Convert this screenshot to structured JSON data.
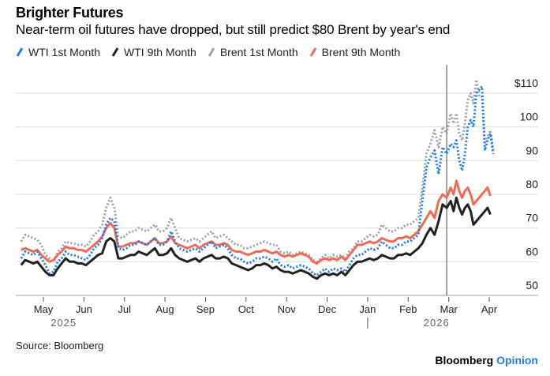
{
  "chart_data": {
    "type": "line",
    "title": "Brighter Futures",
    "subtitle": "Near-term oil futures have dropped, but still predict $80 Brent by year's end",
    "xlabel": "",
    "ylabel": "",
    "ylim": [
      50,
      114
    ],
    "yticks": [
      50,
      60,
      70,
      80,
      90,
      100,
      110
    ],
    "ytick_labels": [
      "50",
      "60",
      "70",
      "80",
      "90",
      "100",
      "$110"
    ],
    "xticks": [
      "May",
      "Jun",
      "Jul",
      "Aug",
      "Sep",
      "Oct",
      "Nov",
      "Dec",
      "Jan",
      "Feb",
      "Mar",
      "Apr"
    ],
    "year_labels": [
      {
        "label": "2025",
        "at_month": 4.5
      },
      {
        "label": "2026",
        "at_month": 13.7
      }
    ],
    "year_divider_month": 12,
    "reference_line_month": 13.95,
    "x_month_range": [
      3.4,
      15.6
    ],
    "grid": true,
    "legend_position": "top-left",
    "x": [
      3.45,
      3.55,
      3.65,
      3.75,
      3.85,
      3.95,
      4.05,
      4.15,
      4.25,
      4.35,
      4.45,
      4.55,
      4.65,
      4.75,
      4.85,
      4.95,
      5.05,
      5.15,
      5.25,
      5.35,
      5.45,
      5.55,
      5.65,
      5.75,
      5.85,
      5.95,
      6.05,
      6.15,
      6.25,
      6.35,
      6.45,
      6.55,
      6.65,
      6.75,
      6.85,
      6.95,
      7.05,
      7.15,
      7.25,
      7.35,
      7.45,
      7.55,
      7.65,
      7.75,
      7.85,
      7.95,
      8.05,
      8.15,
      8.25,
      8.35,
      8.45,
      8.55,
      8.65,
      8.75,
      8.85,
      8.95,
      9.05,
      9.15,
      9.25,
      9.35,
      9.45,
      9.55,
      9.65,
      9.75,
      9.85,
      9.95,
      10.05,
      10.15,
      10.25,
      10.35,
      10.45,
      10.55,
      10.65,
      10.75,
      10.85,
      10.95,
      11.05,
      11.15,
      11.25,
      11.35,
      11.45,
      11.55,
      11.65,
      11.75,
      11.85,
      11.95,
      12.05,
      12.15,
      12.25,
      12.35,
      12.45,
      12.55,
      12.65,
      12.75,
      12.85,
      12.95,
      13.05,
      13.15,
      13.25,
      13.35,
      13.45,
      13.55,
      13.65,
      13.75,
      13.85,
      13.95,
      14.05,
      14.12,
      14.19,
      14.26,
      14.33,
      14.4,
      14.47,
      14.54,
      14.61,
      14.68,
      14.75,
      14.82,
      14.89,
      14.96,
      15.03,
      15.1,
      15.17,
      15.24,
      15.31,
      15.38
    ],
    "series": [
      {
        "name": "WTI 1st Month",
        "color": "#1f7cf0",
        "style": "dotted",
        "values": [
          61,
          63,
          62.5,
          62,
          63,
          61,
          59,
          56.5,
          57,
          60,
          61,
          63,
          62,
          62,
          61.5,
          61,
          60.5,
          62,
          64,
          65,
          67,
          71,
          73,
          72,
          64,
          63.5,
          64,
          65,
          65,
          66,
          65.5,
          65,
          66,
          67,
          65,
          65,
          66,
          69,
          66,
          64,
          63.5,
          63,
          63.5,
          64,
          63,
          64,
          65,
          66,
          64,
          64.5,
          65,
          64,
          62,
          61,
          61,
          60,
          59.5,
          60,
          61,
          61,
          61.5,
          61,
          60,
          61,
          59,
          58.5,
          59,
          58,
          58.5,
          59,
          58.5,
          58,
          56.5,
          56,
          57,
          58,
          57,
          58,
          57.5,
          58,
          57,
          59,
          61,
          62,
          62,
          63,
          64,
          63.5,
          64,
          66,
          65,
          64,
          64,
          65,
          65,
          66,
          66,
          67,
          68,
          78,
          88,
          91,
          93,
          86,
          94,
          92,
          95,
          94,
          96,
          90,
          87,
          92,
          100,
          102,
          100,
          110,
          111,
          112,
          93,
          96,
          98,
          92
        ]
      },
      {
        "name": "WTI 9th Month",
        "color": "#222222",
        "style": "solid",
        "values": [
          59,
          60.5,
          60,
          59.5,
          60,
          58.5,
          57,
          56,
          56,
          58,
          59.5,
          61,
          60,
          60,
          59.5,
          59.5,
          59,
          60,
          61,
          62,
          62.5,
          66,
          67,
          66,
          61,
          61,
          61.5,
          62,
          62,
          63,
          62.5,
          62,
          63,
          64,
          62,
          62,
          62.5,
          64,
          62,
          61,
          60.5,
          60,
          60.5,
          61,
          60,
          61,
          61.5,
          62,
          61,
          61,
          61.5,
          61,
          59.5,
          59,
          58.5,
          58,
          57.5,
          58,
          59,
          59,
          59.5,
          59,
          58,
          58.5,
          57.5,
          57,
          57,
          56.5,
          57,
          57.5,
          57,
          56.5,
          55.5,
          55,
          56,
          56.5,
          56,
          56.5,
          56,
          57,
          56,
          57.5,
          59,
          60,
          60,
          60.5,
          61,
          60.5,
          61,
          62,
          61.5,
          61,
          61,
          62,
          62,
          62.5,
          62,
          63,
          64,
          65.5,
          68,
          70,
          68,
          72,
          77,
          76,
          78,
          75,
          79,
          76,
          74,
          76,
          77,
          75,
          71,
          72,
          73,
          74,
          75,
          76,
          74
        ]
      },
      {
        "name": "Brent 1st Month",
        "color": "#9aa3af",
        "style": "dotted",
        "values": [
          66,
          68,
          67.5,
          67,
          66.5,
          65,
          62,
          61,
          60,
          63,
          64,
          66,
          65.5,
          65.5,
          65,
          65,
          64.5,
          66,
          68,
          69,
          71,
          76,
          79,
          76,
          67.5,
          67,
          68,
          69,
          69,
          70,
          69.5,
          69,
          70,
          71,
          69,
          69,
          70,
          73,
          70,
          67,
          66.5,
          66,
          66.5,
          67,
          66,
          67,
          68,
          69,
          67,
          67.5,
          68,
          67,
          66,
          65,
          65,
          64,
          64,
          64.5,
          65,
          65.5,
          66,
          65.5,
          65,
          65,
          63,
          62.5,
          63,
          62,
          62.5,
          63,
          62.5,
          62,
          60.5,
          60,
          61,
          62,
          61,
          62,
          61.5,
          62,
          61,
          63,
          64,
          66,
          66,
          67,
          68,
          67.5,
          68,
          71,
          70,
          69,
          69,
          70,
          70,
          71,
          71,
          72,
          73,
          82,
          92,
          95,
          99,
          94,
          100,
          98,
          104,
          101,
          104,
          98,
          96,
          101,
          108,
          110,
          107,
          114,
          109,
          109,
          95,
          97,
          99,
          93
        ]
      },
      {
        "name": "Brent 9th Month",
        "color": "#f26b55",
        "style": "solid",
        "values": [
          63.5,
          64,
          63.5,
          63,
          63.5,
          62,
          61,
          60,
          60.5,
          62,
          63,
          64.5,
          64,
          64,
          63.5,
          63.5,
          63,
          64,
          65,
          66,
          67.5,
          70,
          71.5,
          70,
          64.5,
          64.5,
          65,
          65.5,
          65.5,
          66,
          65.5,
          65,
          66,
          67,
          65.5,
          65.5,
          66,
          67.5,
          65.5,
          65,
          64.5,
          64,
          64.5,
          65,
          64,
          65,
          65.5,
          66,
          65,
          65,
          65.5,
          65,
          63.5,
          63,
          63,
          62.5,
          62,
          62.5,
          63,
          63,
          63.5,
          63,
          62.5,
          63,
          62,
          61.5,
          62,
          61.5,
          62,
          62.5,
          62,
          61.5,
          60,
          59.5,
          60.5,
          61,
          60.5,
          61,
          60.5,
          61.5,
          60.5,
          62,
          63.5,
          65,
          65,
          65.5,
          66,
          65.5,
          66,
          67,
          66.5,
          66,
          66,
          67,
          67,
          67.5,
          67,
          68,
          69,
          71,
          73,
          75,
          73,
          78,
          80,
          79,
          82,
          80,
          84,
          81,
          79,
          81,
          82,
          80,
          77,
          78,
          79,
          80,
          81,
          82,
          79.5
        ]
      }
    ]
  },
  "legend": {
    "items": [
      {
        "label": "WTI 1st Month",
        "color": "#1f7cf0"
      },
      {
        "label": "WTI 9th Month",
        "color": "#222222"
      },
      {
        "label": "Brent 1st Month",
        "color": "#9aa3af"
      },
      {
        "label": "Brent 9th Month",
        "color": "#f26b55"
      }
    ]
  },
  "footer": {
    "source": "Source: Bloomberg",
    "brand": "Bloomberg",
    "brand_suffix": "Opinion"
  }
}
